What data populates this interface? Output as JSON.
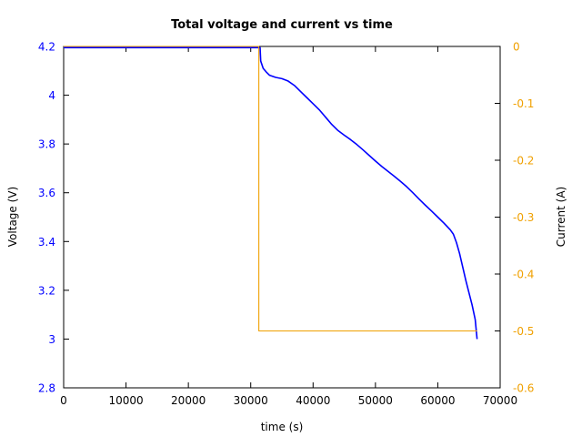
{
  "chart_data": {
    "type": "line",
    "title": "Total voltage and current vs time",
    "xlabel": "time (s)",
    "ylabel_left": "Voltage (V)",
    "ylabel_right": "Current (A)",
    "xlim": [
      0,
      70000
    ],
    "ylim_left": [
      2.8,
      4.2
    ],
    "ylim_right": [
      -0.6,
      0
    ],
    "x_ticks": [
      "0",
      "10000",
      "20000",
      "30000",
      "40000",
      "50000",
      "60000",
      "70000"
    ],
    "y_left_ticks": [
      "2.8",
      "3",
      "3.2",
      "3.4",
      "3.6",
      "3.8",
      "4",
      "4.2"
    ],
    "y_right_ticks": [
      "-0.6",
      "-0.5",
      "-0.4",
      "-0.3",
      "-0.2",
      "-0.1",
      "0"
    ],
    "grid": false,
    "colors": {
      "voltage": "#0000ff",
      "current": "#f0a000",
      "left_axis_text": "#0000ff",
      "right_axis_text": "#f0a000"
    },
    "series": [
      {
        "axis": "left",
        "x": [
          0,
          31500,
          31600,
          32000,
          32500,
          33000,
          34000,
          35000,
          36000,
          37000,
          38000,
          39000,
          40000,
          41000,
          42000,
          43000,
          44000,
          45000,
          46000,
          47000,
          48000,
          49000,
          50000,
          51000,
          52000,
          53000,
          54000,
          55000,
          56000,
          57000,
          58000,
          59000,
          60000,
          61000,
          62000,
          62500,
          63000,
          63500,
          64000,
          64500,
          65000,
          65500,
          66000,
          66300
        ],
        "y": [
          4.195,
          4.195,
          4.14,
          4.11,
          4.095,
          4.082,
          4.073,
          4.068,
          4.058,
          4.04,
          4.015,
          3.99,
          3.965,
          3.94,
          3.91,
          3.88,
          3.855,
          3.836,
          3.818,
          3.798,
          3.776,
          3.753,
          3.73,
          3.708,
          3.688,
          3.668,
          3.647,
          3.625,
          3.6,
          3.574,
          3.549,
          3.525,
          3.5,
          3.475,
          3.448,
          3.43,
          3.395,
          3.35,
          3.295,
          3.24,
          3.19,
          3.14,
          3.08,
          3.0
        ]
      },
      {
        "axis": "right",
        "x": [
          0,
          31300,
          31300,
          66300
        ],
        "y": [
          0,
          0,
          -0.5,
          -0.5
        ]
      }
    ]
  }
}
